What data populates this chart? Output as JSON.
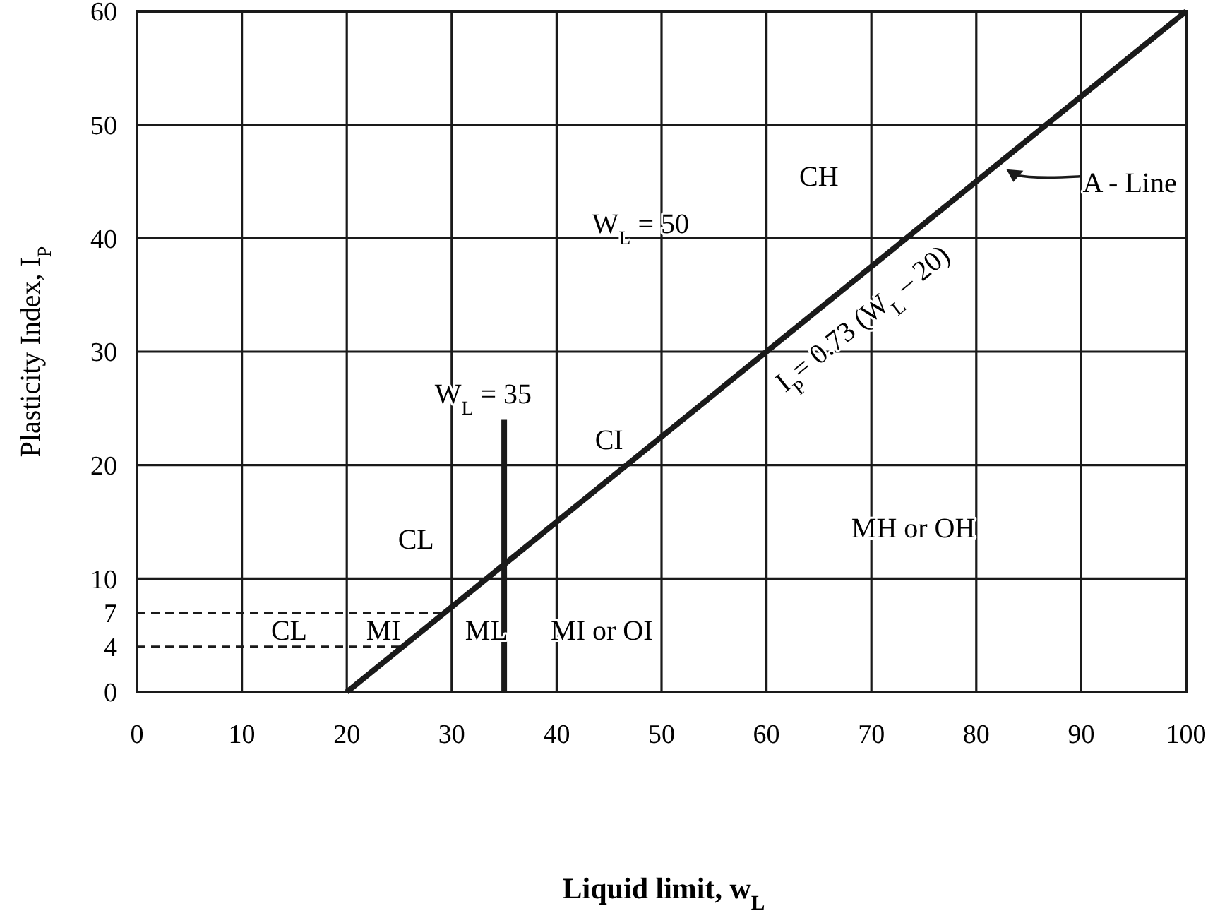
{
  "chart_data": {
    "type": "line",
    "xlabel": "Liquid limit, w$_{L}$",
    "ylabel": "Plasticity Index, I$_{P}$",
    "xlim": [
      0,
      100
    ],
    "xticks": [
      0,
      10,
      20,
      30,
      40,
      50,
      60,
      70,
      80,
      90,
      100
    ],
    "ylim": [
      0,
      60
    ],
    "yticks": [
      0,
      4,
      7,
      10,
      20,
      30,
      40,
      50,
      60
    ],
    "grid": true,
    "series": [
      {
        "color": "#1a1a1a",
        "x": [
          20,
          100
        ],
        "values": [
          0,
          60
        ]
      },
      {
        "color": "#1a1a1a",
        "x": [
          35,
          35
        ],
        "values": [
          0,
          24
        ]
      },
      {
        "color": "#1a1a1a",
        "x": [
          0,
          29.6
        ],
        "values": [
          7,
          7
        ],
        "line_style": "dashed"
      },
      {
        "color": "#1a1a1a",
        "x": [
          0,
          25.3
        ],
        "values": [
          4,
          4
        ],
        "line_style": "dashed"
      }
    ],
    "annotations": [
      "CH",
      "A - Line",
      "W$_{L}$ = 50",
      "I$_{P}$= 0.73 (W$_{L}$ – 20)",
      "W$_{L}$ = 35",
      "CI",
      "CL",
      "MH or OH",
      "CL",
      "MI",
      "ML",
      "MI or OI"
    ]
  }
}
